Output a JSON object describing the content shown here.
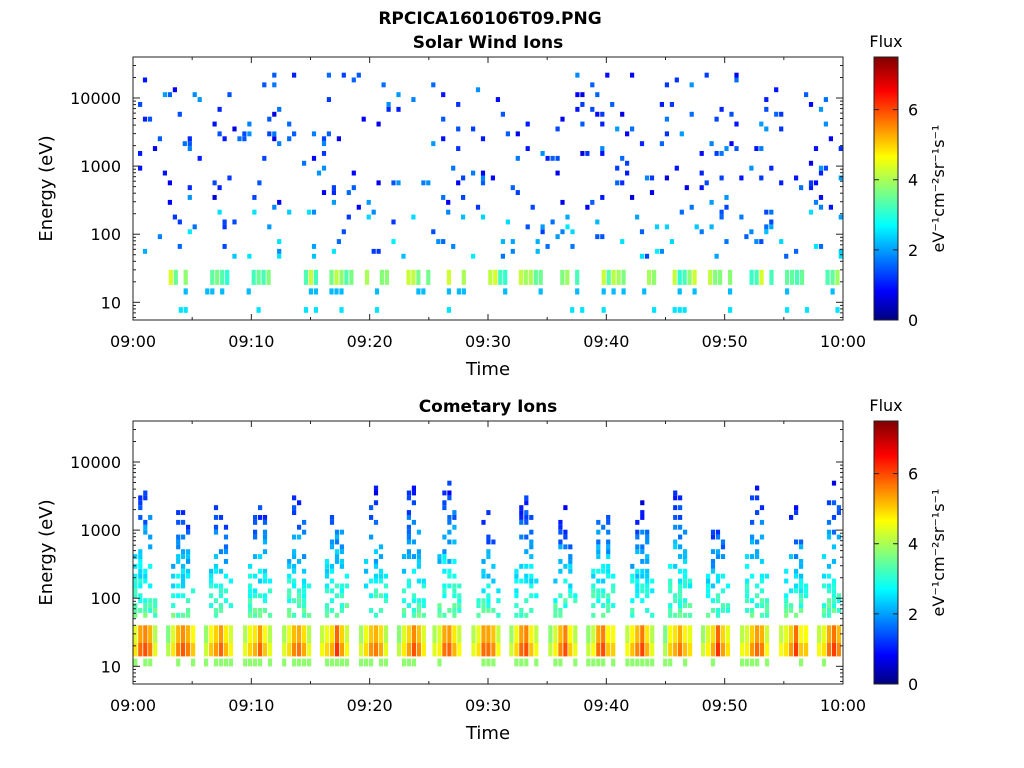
{
  "figure_title": "RPCICA160106T09.PNG",
  "chart_data": [
    {
      "type": "heatmap",
      "title": "Solar Wind Ions",
      "xlabel": "Time",
      "ylabel": "Energy (eV)",
      "x_ticks": [
        "09:00",
        "09:10",
        "09:20",
        "09:30",
        "09:40",
        "09:50",
        "10:00"
      ],
      "xlim_minutes": [
        0,
        60
      ],
      "y_ticks": [
        "10",
        "100",
        "1000",
        "10000"
      ],
      "ylim": [
        5.5,
        40000
      ],
      "y_scale": "log",
      "colorbar": {
        "label": "Flux",
        "units": "eV⁻¹cm⁻²sr⁻¹s⁻¹",
        "ticks": [
          "0",
          "2",
          "4",
          "6"
        ],
        "range": [
          0,
          7.5
        ],
        "colormap": "jet"
      },
      "pattern": {
        "bursts_minutes": [
          3.5,
          7,
          10.5,
          14.5,
          17.5,
          20.5,
          24,
          27,
          30.5,
          33.5,
          37,
          40.5,
          43.5,
          46.5,
          49.5,
          53,
          56,
          59
        ],
        "core_energy_eV": [
          18,
          30
        ],
        "core_flux": [
          3.0,
          4.4
        ],
        "scatter_energy_eV": [
          40,
          20000
        ],
        "scatter_flux": [
          0.6,
          2.0
        ]
      }
    },
    {
      "type": "heatmap",
      "title": "Cometary Ions",
      "xlabel": "Time",
      "ylabel": "Energy (eV)",
      "x_ticks": [
        "09:00",
        "09:10",
        "09:20",
        "09:30",
        "09:40",
        "09:50",
        "10:00"
      ],
      "xlim_minutes": [
        0,
        60
      ],
      "y_ticks": [
        "10",
        "100",
        "1000",
        "10000"
      ],
      "ylim": [
        5.5,
        40000
      ],
      "y_scale": "log",
      "colorbar": {
        "label": "Flux",
        "units": "eV⁻¹cm⁻²sr⁻¹s⁻¹",
        "ticks": [
          "0",
          "2",
          "4",
          "6"
        ],
        "range": [
          0,
          7.5
        ],
        "colormap": "jet"
      },
      "pattern": {
        "bursts_minutes": [
          0.8,
          4,
          7.2,
          10.5,
          13.8,
          17,
          20.3,
          23.5,
          26.5,
          29.8,
          33,
          36.3,
          39.5,
          42.8,
          46,
          49.2,
          52.5,
          55.8,
          59
        ],
        "core_energy_eV": [
          14,
          40
        ],
        "core_flux": [
          4.5,
          6.3
        ],
        "plume_top_energy_eV": [
          1500,
          6000
        ],
        "plume_flux": [
          1.2,
          3.8
        ]
      }
    }
  ]
}
